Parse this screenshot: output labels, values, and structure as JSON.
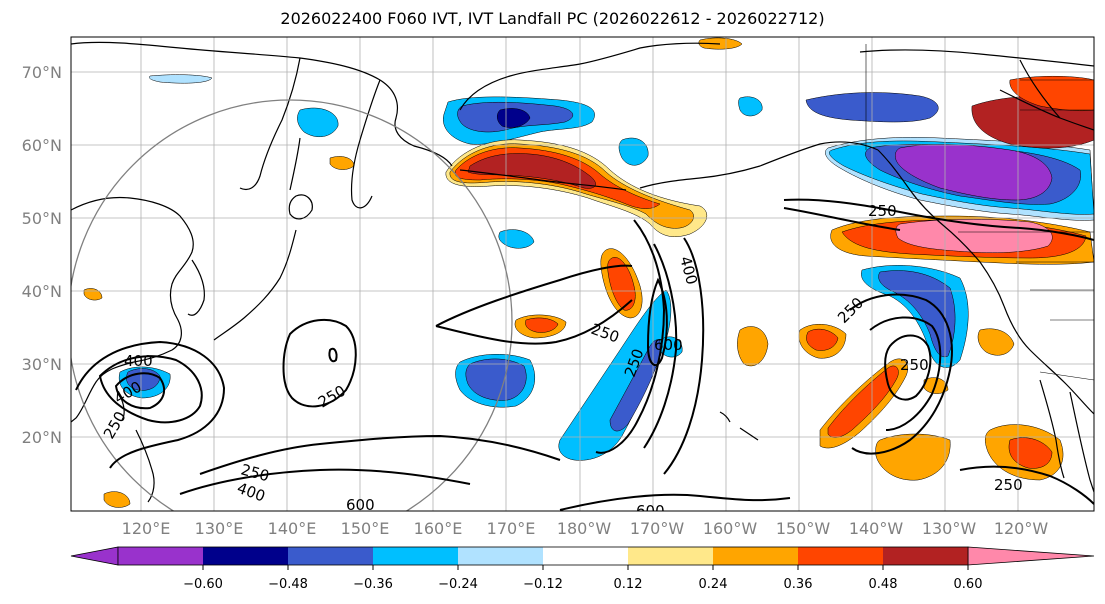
{
  "title": "2026022400 F060 IVT, IVT Landfall PC (2026022612 - 2026022712)",
  "map": {
    "lon_labels": [
      "120°E",
      "130°E",
      "140°E",
      "150°E",
      "160°E",
      "170°E",
      "180°W",
      "170°W",
      "160°W",
      "150°W",
      "140°W",
      "130°W",
      "120°W"
    ],
    "lat_labels": [
      "70°N",
      "60°N",
      "50°N",
      "40°N",
      "30°N",
      "20°N"
    ],
    "contour_labels": [
      "250",
      "400",
      "600",
      "250",
      "250",
      "400",
      "250",
      "400",
      "250",
      "400",
      "600",
      "250",
      "250",
      "250",
      "600",
      "250"
    ]
  },
  "colorbar": {
    "tick_labels": [
      "−0.60",
      "−0.48",
      "−0.36",
      "−0.24",
      "−0.12",
      "0.12",
      "0.24",
      "0.36",
      "0.48",
      "0.60"
    ],
    "colors": [
      "#9932cc",
      "#00008b",
      "#3a5bcc",
      "#00bfff",
      "#b0e2ff",
      "#ffffff",
      "#ffe88a",
      "#ffa500",
      "#ff4500",
      "#b22222",
      "#ff88aa"
    ]
  }
}
